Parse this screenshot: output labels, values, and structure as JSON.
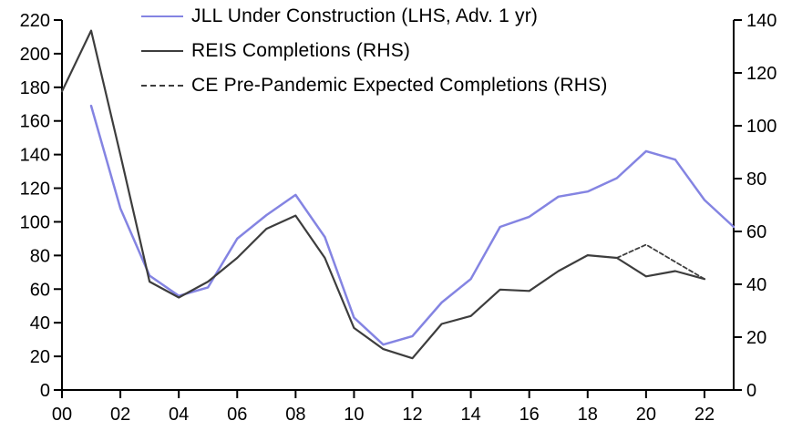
{
  "chart_data": {
    "type": "line",
    "title": "",
    "grid": false,
    "legend_position": "top-left-inside",
    "x_axis": {
      "range": [
        2000,
        2023
      ],
      "tick_years": [
        2000,
        2002,
        2004,
        2006,
        2008,
        2010,
        2012,
        2014,
        2016,
        2018,
        2020,
        2022
      ],
      "tick_labels": [
        "00",
        "02",
        "04",
        "06",
        "08",
        "10",
        "12",
        "14",
        "16",
        "18",
        "20",
        "22"
      ]
    },
    "left_axis": {
      "range": [
        0,
        220
      ],
      "ticks": [
        0,
        20,
        40,
        60,
        80,
        100,
        120,
        140,
        160,
        180,
        200,
        220
      ],
      "tick_labels": [
        "0",
        "20",
        "40",
        "60",
        "80",
        "100",
        "120",
        "140",
        "160",
        "180",
        "200",
        "220"
      ]
    },
    "right_axis": {
      "range": [
        0,
        140
      ],
      "ticks": [
        0,
        20,
        40,
        60,
        80,
        100,
        120,
        140
      ],
      "tick_labels": [
        "0",
        "20",
        "40",
        "60",
        "80",
        "100",
        "120",
        "140"
      ]
    },
    "series": [
      {
        "id": "jll-under-construction",
        "name": "JLL Under Construction (LHS, Adv. 1 yr)",
        "axis": "left",
        "color": "#8484E2",
        "dashed": false,
        "points": [
          [
            2001,
            169
          ],
          [
            2002,
            108
          ],
          [
            2003,
            68
          ],
          [
            2004,
            56
          ],
          [
            2005,
            61
          ],
          [
            2006,
            90
          ],
          [
            2007,
            104
          ],
          [
            2008,
            116
          ],
          [
            2009,
            91
          ],
          [
            2010,
            43
          ],
          [
            2011,
            27
          ],
          [
            2012,
            32
          ],
          [
            2013,
            52
          ],
          [
            2014,
            66
          ],
          [
            2015,
            97
          ],
          [
            2016,
            103
          ],
          [
            2017,
            115
          ],
          [
            2018,
            118
          ],
          [
            2019,
            126
          ],
          [
            2020,
            142
          ],
          [
            2021,
            137
          ],
          [
            2022,
            113
          ],
          [
            2023,
            97
          ]
        ]
      },
      {
        "id": "reis-completions",
        "name": "REIS Completions (RHS)",
        "axis": "right",
        "color": "#3D3D3D",
        "dashed": false,
        "points": [
          [
            2000,
            113
          ],
          [
            2001,
            136
          ],
          [
            2002,
            89
          ],
          [
            2003,
            41
          ],
          [
            2004,
            35
          ],
          [
            2005,
            41
          ],
          [
            2006,
            50
          ],
          [
            2007,
            61
          ],
          [
            2008,
            66
          ],
          [
            2009,
            50
          ],
          [
            2010,
            23.5
          ],
          [
            2011,
            15.5
          ],
          [
            2012,
            12
          ],
          [
            2013,
            25
          ],
          [
            2014,
            28
          ],
          [
            2015,
            38
          ],
          [
            2016,
            37.5
          ],
          [
            2017,
            45
          ],
          [
            2018,
            51
          ],
          [
            2019,
            50
          ],
          [
            2020,
            43
          ],
          [
            2021,
            45
          ],
          [
            2022,
            42
          ]
        ]
      },
      {
        "id": "ce-pre-pandemic-expected-completions",
        "name": "CE Pre-Pandemic Expected Completions (RHS)",
        "axis": "right",
        "color": "#3D3D3D",
        "dashed": true,
        "points": [
          [
            2019,
            50
          ],
          [
            2020,
            55
          ],
          [
            2021,
            48.5
          ],
          [
            2022,
            42
          ]
        ]
      }
    ],
    "axis_color": "#000000"
  }
}
